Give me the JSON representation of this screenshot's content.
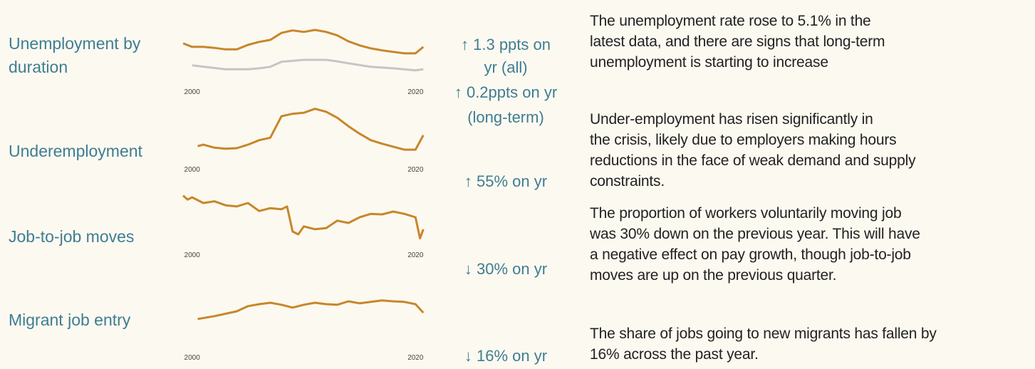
{
  "rows": [
    {
      "label": [
        "Unemployment by",
        "duration"
      ],
      "change": [
        "↑ 1.3 ppts  on",
        "yr (all)",
        "↑ 0.2ppts on yr",
        "(long-term)"
      ]
    },
    {
      "label": [
        "Underemployment"
      ],
      "change": [
        "↑ 55% on yr"
      ]
    },
    {
      "label": [
        "Job-to-job moves"
      ],
      "change": [
        "↓ 30% on yr"
      ]
    },
    {
      "label": [
        "Migrant job entry"
      ],
      "change": [
        "↓ 16% on yr"
      ]
    }
  ],
  "notes": [
    [
      "The unemployment rate rose to 5.1% in the",
      "latest data, and there are signs that long-term",
      "unemployment is starting to increase"
    ],
    [
      "Under-employment has risen significantly in",
      "the crisis, likely due to employers making hours",
      "reductions in the face of weak demand and supply",
      "constraints."
    ],
    [
      "The proportion of workers voluntarily moving job",
      "was 30% down on the previous year. This will have",
      "a negative effect on pay growth, though job-to-job",
      "moves are up on the previous quarter."
    ],
    [
      "The share of jobs going to new migrants has fallen by",
      "16% across the past year."
    ]
  ],
  "chart_data": [
    {
      "type": "line",
      "xlim": [
        1999,
        2021
      ],
      "xticks": [
        2000,
        2020
      ],
      "ylim": [
        0,
        100
      ],
      "series": [
        {
          "color": "#c8862a",
          "x": [
            1999.2,
            2000,
            2001,
            2002,
            2003,
            2004,
            2005,
            2006,
            2007,
            2008,
            2009,
            2010,
            2011,
            2012,
            2013,
            2014,
            2015,
            2016,
            2017,
            2018,
            2019,
            2020,
            2020.7
          ],
          "values": [
            63,
            56,
            56,
            54,
            51,
            51,
            60,
            66,
            70,
            84,
            89,
            86,
            90,
            86,
            79,
            67,
            59,
            53,
            49,
            46,
            43,
            43,
            56
          ]
        },
        {
          "color": "#c5c5c5",
          "x": [
            2000,
            2003,
            2005,
            2006,
            2007,
            2008,
            2010,
            2012,
            2013,
            2014,
            2016,
            2018,
            2020,
            2020.7
          ],
          "values": [
            19,
            11,
            11,
            13,
            16,
            26,
            30,
            30,
            27,
            23,
            16,
            13,
            9,
            11
          ]
        }
      ]
    },
    {
      "type": "line",
      "xlim": [
        1999,
        2021
      ],
      "xticks": [
        2000,
        2020
      ],
      "ylim": [
        0,
        100
      ],
      "series": [
        {
          "color": "#c8862a",
          "x": [
            2000.5,
            2001,
            2002,
            2003,
            2004,
            2005,
            2006,
            2007,
            2008,
            2009,
            2010,
            2011,
            2012,
            2013,
            2014,
            2015,
            2016,
            2017,
            2018,
            2019,
            2020,
            2020.7
          ],
          "values": [
            14,
            17,
            11,
            9,
            10,
            17,
            26,
            31,
            74,
            79,
            81,
            89,
            83,
            71,
            54,
            39,
            26,
            19,
            13,
            7,
            7,
            36
          ]
        }
      ]
    },
    {
      "type": "line",
      "xlim": [
        1999,
        2021
      ],
      "xticks": [
        2000,
        2020
      ],
      "ylim": [
        0,
        100
      ],
      "series": [
        {
          "color": "#c8862a",
          "x": [
            1999.2,
            1999.6,
            2000,
            2001,
            2002,
            2003,
            2004,
            2005,
            2006,
            2007,
            2008,
            2008.5,
            2009,
            2009.5,
            2010,
            2011,
            2012,
            2013,
            2014,
            2015,
            2016,
            2017,
            2018,
            2019,
            2020,
            2020.4,
            2020.7
          ],
          "values": [
            88,
            81,
            85,
            75,
            78,
            71,
            69,
            75,
            61,
            66,
            64,
            69,
            25,
            20,
            34,
            29,
            31,
            44,
            40,
            50,
            56,
            55,
            60,
            56,
            50,
            13,
            29
          ]
        }
      ]
    },
    {
      "type": "line",
      "xlim": [
        1999,
        2021
      ],
      "xticks": [
        2000,
        2020
      ],
      "ylim": [
        0,
        100
      ],
      "series": [
        {
          "color": "#c8862a",
          "x": [
            2000.5,
            2002,
            2004,
            2005,
            2006,
            2007,
            2008,
            2009,
            2010,
            2011,
            2012,
            2013,
            2014,
            2015,
            2016,
            2017,
            2018,
            2019,
            2020,
            2020.7
          ],
          "values": [
            18,
            28,
            45,
            63,
            70,
            75,
            68,
            58,
            68,
            75,
            70,
            68,
            80,
            73,
            78,
            83,
            80,
            78,
            70,
            40
          ]
        }
      ]
    }
  ]
}
